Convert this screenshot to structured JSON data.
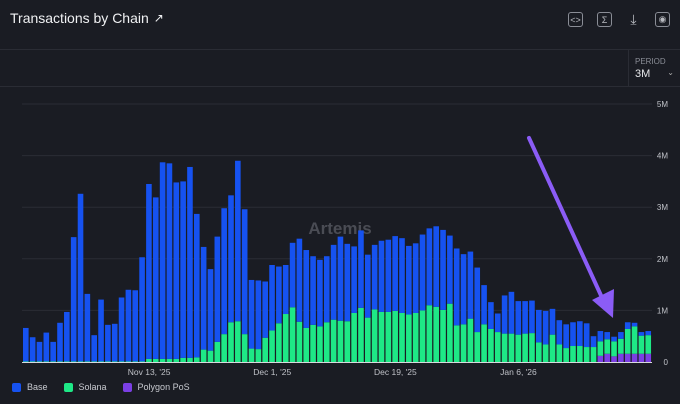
{
  "header": {
    "title": "Transactions by Chain",
    "icons": [
      "external-link-icon",
      "embed-code-icon",
      "sigma-icon",
      "download-icon",
      "camera-icon"
    ]
  },
  "period": {
    "label": "PERIOD",
    "value": "3M"
  },
  "watermark": "Artemis",
  "colors": {
    "Base": "#1652f0",
    "Solana": "#1ee886",
    "Polygon PoS": "#7b3fe4",
    "arrow": "#8b5cf6"
  },
  "chart_data": {
    "type": "bar",
    "stacked": true,
    "title": "Transactions by Chain",
    "ylim": [
      0,
      5000000
    ],
    "yticks": [
      0,
      1000000,
      2000000,
      3000000,
      4000000,
      5000000
    ],
    "ytick_labels": [
      "0",
      "1M",
      "2M",
      "3M",
      "4M",
      "5M"
    ],
    "xtick_labels": [
      "Nov 13, '25",
      "Dec 1, '25",
      "Dec 19, '25",
      "Jan 6, '26"
    ],
    "grid": true,
    "legend": "bottom-left",
    "series": [
      {
        "name": "Base",
        "unit": "M",
        "values": [
          0.65,
          0.47,
          0.38,
          0.56,
          0.38,
          0.75,
          0.96,
          2.41,
          3.25,
          1.31,
          0.51,
          1.2,
          0.71,
          0.73,
          1.24,
          1.39,
          1.38,
          2.02,
          3.39,
          3.13,
          3.81,
          3.79,
          3.42,
          3.42,
          3.7,
          2.78,
          1.99,
          1.58,
          2.04,
          2.44,
          2.46,
          3.11,
          2.42,
          1.33,
          1.33,
          1.09,
          1.27,
          1.1,
          0.95,
          1.25,
          1.61,
          1.51,
          1.33,
          1.29,
          1.28,
          1.45,
          1.63,
          1.5,
          1.29,
          1.5,
          1.22,
          1.25,
          1.38,
          1.4,
          1.45,
          1.45,
          1.33,
          1.35,
          1.47,
          1.49,
          1.56,
          1.55,
          1.32,
          1.49,
          1.36,
          1.3,
          1.25,
          0.76,
          0.52,
          0.36,
          0.74,
          0.81,
          0.65,
          0.63,
          0.63,
          0.63,
          0.65,
          0.5,
          0.47,
          0.46,
          0.46,
          0.48,
          0.46,
          0.21,
          0.2,
          0.14,
          0.09,
          0.13,
          0.13,
          0.07,
          0.07,
          0.08
        ]
      },
      {
        "name": "Solana",
        "unit": "M",
        "values": [
          0.01,
          0.01,
          0.01,
          0.01,
          0.01,
          0.01,
          0.01,
          0.01,
          0.01,
          0.01,
          0.01,
          0.01,
          0.01,
          0.01,
          0.01,
          0.01,
          0.01,
          0.01,
          0.06,
          0.06,
          0.06,
          0.06,
          0.06,
          0.08,
          0.08,
          0.09,
          0.24,
          0.22,
          0.39,
          0.54,
          0.77,
          0.79,
          0.54,
          0.26,
          0.25,
          0.47,
          0.61,
          0.75,
          0.93,
          1.06,
          0.78,
          0.66,
          0.72,
          0.69,
          0.77,
          0.82,
          0.8,
          0.79,
          0.95,
          1.05,
          0.86,
          1.02,
          0.97,
          0.97,
          0.99,
          0.95,
          0.92,
          0.95,
          1.0,
          1.1,
          1.07,
          1.01,
          1.13,
          0.71,
          0.73,
          0.84,
          0.58,
          0.73,
          0.64,
          0.58,
          0.55,
          0.55,
          0.53,
          0.55,
          0.56,
          0.38,
          0.34,
          0.53,
          0.34,
          0.27,
          0.31,
          0.31,
          0.29,
          0.29,
          0.28,
          0.28,
          0.29,
          0.29,
          0.48,
          0.53,
          0.35,
          0.36
        ]
      },
      {
        "name": "Polygon PoS",
        "unit": "M",
        "values": [
          0,
          0,
          0,
          0,
          0,
          0,
          0,
          0,
          0,
          0,
          0,
          0,
          0,
          0,
          0,
          0,
          0,
          0,
          0,
          0,
          0,
          0,
          0,
          0,
          0,
          0,
          0,
          0,
          0,
          0,
          0,
          0,
          0,
          0,
          0,
          0,
          0,
          0,
          0,
          0,
          0,
          0,
          0,
          0,
          0,
          0,
          0,
          0,
          0,
          0,
          0,
          0,
          0,
          0,
          0,
          0,
          0,
          0,
          0,
          0,
          0,
          0,
          0,
          0,
          0,
          0,
          0,
          0,
          0,
          0,
          0,
          0,
          0,
          0,
          0,
          0,
          0,
          0,
          0,
          0,
          0,
          0,
          0,
          0,
          0.12,
          0.16,
          0.11,
          0.16,
          0.16,
          0.16,
          0.16,
          0.16
        ]
      }
    ]
  }
}
